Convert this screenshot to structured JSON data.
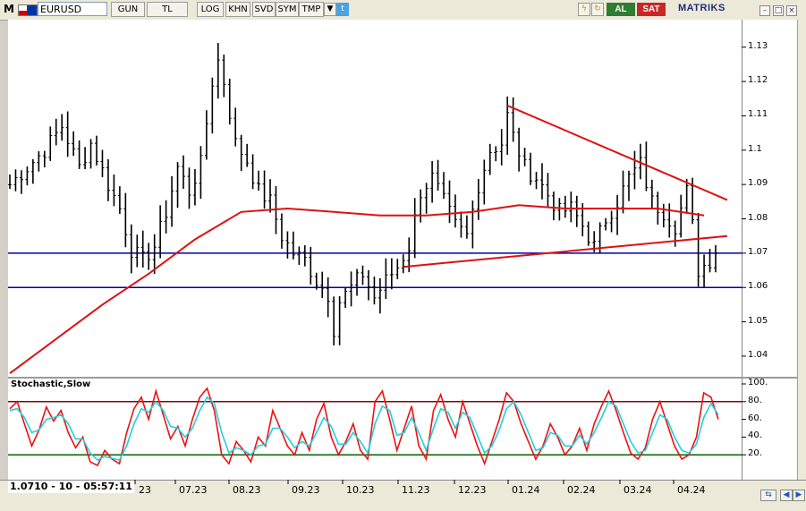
{
  "toolbar": {
    "symbol": "EURUSD",
    "buttons": [
      "GUN",
      "TL",
      "LOG",
      "KHN",
      "SVD",
      "SYM",
      "TMP"
    ],
    "buy_label": "AL",
    "sell_label": "SAT",
    "brand": "MATRIKS",
    "logo": "M"
  },
  "status": {
    "readout": "1.0710 - 10 - 05:57:11"
  },
  "indicator": {
    "title": "Stochastic,Slow"
  },
  "colors": {
    "price_bars": "#000000",
    "moving_average": "#dd1111",
    "trendline": "#dd1111",
    "support": "#0000aa",
    "stoch_k": "#ee1111",
    "stoch_d": "#22cfe0",
    "overbought": "#8b0000",
    "oversold": "#006400"
  },
  "chart_data": [
    {
      "type": "ohlc",
      "instrument": "EURUSD",
      "y_ticks": [
        "1.04",
        "1.05",
        "1.06",
        "1.07",
        "1.08",
        "1.09",
        "1.1",
        "1.11",
        "1.12",
        "1.13"
      ],
      "ylim": [
        1.034,
        1.138
      ],
      "x_ticks": [
        "23",
        "07.23",
        "08.23",
        "09.23",
        "10.23",
        "11.23",
        "12.23",
        "01.24",
        "02.24",
        "03.24",
        "04.24"
      ],
      "horizontal_lines": [
        1.07,
        1.06
      ],
      "close_path": [
        [
          0,
          1.09
        ],
        [
          3,
          1.095
        ],
        [
          6,
          1.1
        ],
        [
          9,
          1.107
        ],
        [
          12,
          1.095
        ],
        [
          14,
          1.102
        ],
        [
          17,
          1.09
        ],
        [
          19,
          1.083
        ],
        [
          21,
          1.071
        ],
        [
          23,
          1.068
        ],
        [
          25,
          1.072
        ],
        [
          27,
          1.082
        ],
        [
          29,
          1.095
        ],
        [
          31,
          1.088
        ],
        [
          33,
          1.096
        ],
        [
          35,
          1.12
        ],
        [
          36,
          1.126
        ],
        [
          37,
          1.12
        ],
        [
          39,
          1.102
        ],
        [
          41,
          1.097
        ],
        [
          43,
          1.088
        ],
        [
          45,
          1.085
        ],
        [
          47,
          1.075
        ],
        [
          49,
          1.07
        ],
        [
          51,
          1.068
        ],
        [
          53,
          1.062
        ],
        [
          55,
          1.058
        ],
        [
          56,
          1.048
        ],
        [
          57,
          1.056
        ],
        [
          59,
          1.06
        ],
        [
          61,
          1.064
        ],
        [
          63,
          1.057
        ],
        [
          65,
          1.062
        ],
        [
          67,
          1.066
        ],
        [
          69,
          1.072
        ],
        [
          71,
          1.088
        ],
        [
          73,
          1.092
        ],
        [
          75,
          1.085
        ],
        [
          77,
          1.078
        ],
        [
          79,
          1.075
        ],
        [
          81,
          1.09
        ],
        [
          83,
          1.1
        ],
        [
          85,
          1.102
        ],
        [
          86,
          1.11
        ],
        [
          87,
          1.104
        ],
        [
          89,
          1.095
        ],
        [
          91,
          1.092
        ],
        [
          93,
          1.087
        ],
        [
          95,
          1.082
        ],
        [
          97,
          1.083
        ],
        [
          99,
          1.078
        ],
        [
          101,
          1.072
        ],
        [
          103,
          1.08
        ],
        [
          105,
          1.085
        ],
        [
          107,
          1.092
        ],
        [
          109,
          1.096
        ],
        [
          111,
          1.085
        ],
        [
          113,
          1.082
        ],
        [
          115,
          1.078
        ],
        [
          117,
          1.088
        ],
        [
          118,
          1.078
        ],
        [
          119,
          1.065
        ],
        [
          121,
          1.068
        ],
        [
          122,
          1.071
        ]
      ],
      "moving_average_path": [
        [
          0,
          1.035
        ],
        [
          8,
          1.045
        ],
        [
          16,
          1.055
        ],
        [
          24,
          1.064
        ],
        [
          32,
          1.074
        ],
        [
          40,
          1.082
        ],
        [
          48,
          1.083
        ],
        [
          56,
          1.082
        ],
        [
          64,
          1.081
        ],
        [
          72,
          1.081
        ],
        [
          80,
          1.082
        ],
        [
          88,
          1.084
        ],
        [
          96,
          1.083
        ],
        [
          104,
          1.083
        ],
        [
          112,
          1.083
        ],
        [
          120,
          1.081
        ]
      ],
      "trendlines": [
        {
          "from": [
            86,
            1.113
          ],
          "to": [
            124,
            1.0855
          ]
        },
        {
          "from": [
            68,
            1.066
          ],
          "to": [
            124,
            1.075
          ]
        }
      ]
    },
    {
      "type": "line",
      "title": "Stochastic,Slow",
      "y_ticks": [
        "20.",
        "40.",
        "60.",
        "80.",
        "100."
      ],
      "ylim": [
        0,
        100
      ],
      "levels": [
        80,
        20
      ],
      "series": [
        {
          "values": [
            72,
            80,
            55,
            30,
            48,
            74,
            58,
            70,
            45,
            28,
            40,
            12,
            8,
            25,
            15,
            10,
            45,
            72,
            85,
            60,
            92,
            65,
            38,
            52,
            30,
            60,
            85,
            95,
            70,
            20,
            10,
            35,
            25,
            12,
            40,
            30,
            70,
            50,
            30,
            20,
            45,
            25,
            60,
            78,
            40,
            20,
            35,
            55,
            25,
            15,
            80,
            92,
            60,
            25,
            50,
            75,
            30,
            15,
            70,
            88,
            60,
            40,
            80,
            55,
            30,
            10,
            35,
            60,
            90,
            80,
            55,
            35,
            15,
            30,
            55,
            40,
            20,
            30,
            50,
            25,
            55,
            75,
            92,
            70,
            45,
            22,
            15,
            28,
            60,
            80,
            55,
            30,
            15,
            20,
            40,
            90,
            85,
            60
          ]
        },
        {
          "values": [
            70,
            72,
            62,
            45,
            48,
            60,
            62,
            65,
            55,
            38,
            38,
            22,
            14,
            18,
            16,
            14,
            30,
            55,
            72,
            68,
            80,
            70,
            52,
            50,
            40,
            50,
            70,
            85,
            78,
            45,
            22,
            28,
            25,
            20,
            30,
            32,
            50,
            50,
            40,
            28,
            35,
            30,
            45,
            62,
            52,
            32,
            32,
            45,
            35,
            22,
            55,
            75,
            70,
            42,
            45,
            62,
            45,
            25,
            50,
            72,
            68,
            50,
            68,
            62,
            42,
            22,
            30,
            48,
            72,
            80,
            65,
            45,
            25,
            28,
            45,
            42,
            30,
            30,
            42,
            32,
            45,
            62,
            80,
            75,
            55,
            35,
            22,
            25,
            45,
            65,
            60,
            40,
            25,
            22,
            32,
            62,
            78,
            65
          ]
        }
      ]
    }
  ]
}
